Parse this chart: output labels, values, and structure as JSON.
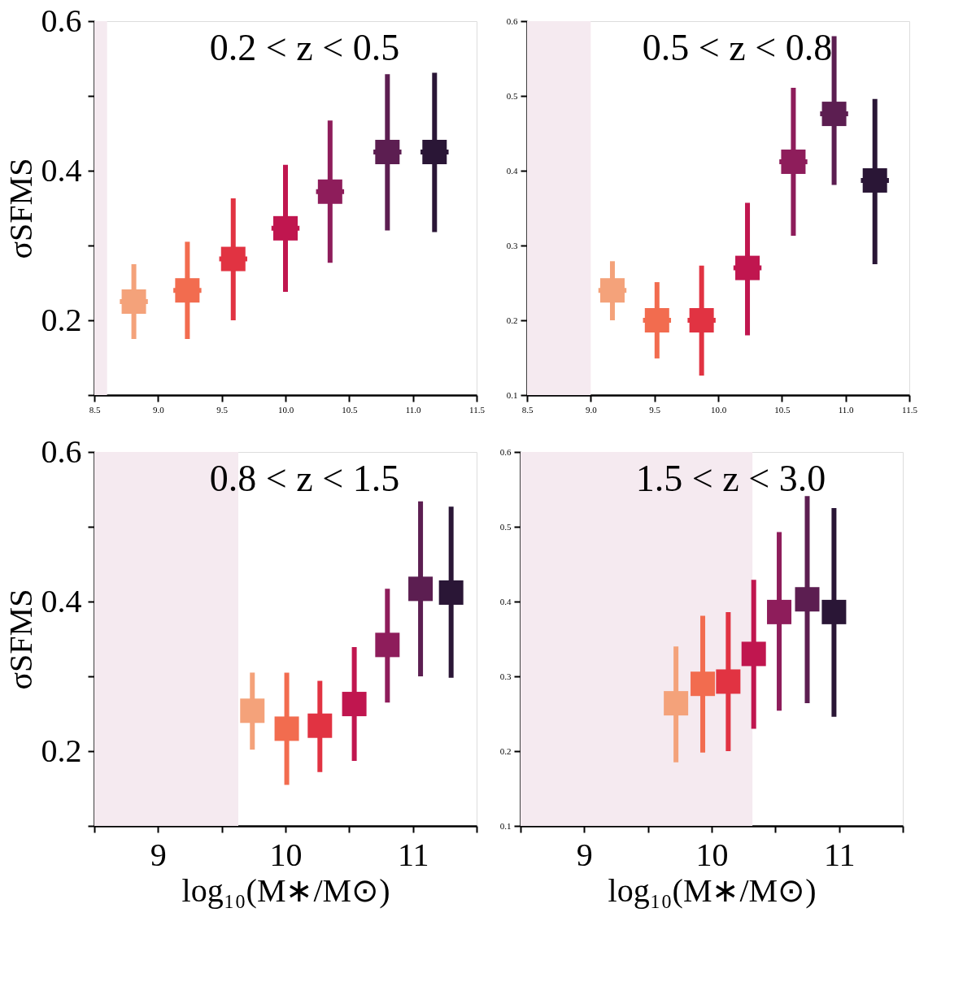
{
  "chart_data": [
    {
      "type": "scatter",
      "title": "0.2 < z < 0.5",
      "ylabel": "σSFMS",
      "marker": "square",
      "xlim": [
        8.5,
        11.5
      ],
      "ylim": [
        0.1,
        0.6
      ],
      "xticks": [
        8.5,
        {
          "value": 9,
          "label": "9.0"
        },
        9.5,
        {
          "value": 10,
          "label": "10.0"
        },
        10.5,
        {
          "value": 11,
          "label": "11.0"
        },
        11.5
      ],
      "yticks": [
        {
          "value": 0.1,
          "label": null
        },
        0.2,
        {
          "value": 0.3,
          "label": null
        },
        0.4,
        {
          "value": 0.5,
          "label": null
        },
        0.6
      ],
      "bands": [
        {
          "axis": "x",
          "from": 8.5,
          "to": 8.6,
          "color": "#f5eaf0"
        }
      ],
      "x": [
        8.81,
        9.23,
        9.59,
        10.0,
        10.35,
        10.8,
        11.17
      ],
      "series": [
        {
          "colors": [
            "#f4a27a",
            "#f26c4f",
            "#e13342",
            "#c0164f",
            "#8e1d5b",
            "#5c1e51",
            "#2a1636"
          ],
          "values": [
            0.225,
            0.24,
            0.282,
            0.323,
            0.372,
            0.425,
            0.425
          ],
          "errors": [
            [
              0.175,
              0.275
            ],
            [
              0.175,
              0.305
            ],
            [
              0.2,
              0.363
            ],
            [
              0.238,
              0.408
            ],
            [
              0.277,
              0.467
            ],
            [
              0.32,
              0.529
            ],
            [
              0.318,
              0.531
            ]
          ],
          "xerrors": [
            0.11,
            0.11,
            0.11,
            0.11,
            0.11,
            0.11,
            0.11
          ]
        }
      ]
    },
    {
      "type": "scatter",
      "title": "0.5 < z < 0.8",
      "marker": "square",
      "xlim": [
        8.5,
        11.5
      ],
      "ylim": [
        0.1,
        0.6
      ],
      "xticks": [
        8.5,
        {
          "value": 9,
          "label": "9.0"
        },
        9.5,
        {
          "value": 10,
          "label": "10.0"
        },
        10.5,
        {
          "value": 11,
          "label": "11.0"
        },
        11.5
      ],
      "yticks": [
        0.1,
        0.2,
        0.3,
        0.4,
        0.5,
        0.6
      ],
      "bands": [
        {
          "axis": "x",
          "from": 8.5,
          "to": 9.0,
          "color": "#f5eaf0"
        }
      ],
      "x": [
        9.17,
        9.52,
        9.87,
        10.23,
        10.59,
        10.91,
        11.23
      ],
      "series": [
        {
          "colors": [
            "#f4a27a",
            "#f26c4f",
            "#e13342",
            "#c0164f",
            "#8e1d5b",
            "#5c1e51",
            "#2a1636"
          ],
          "values": [
            0.24,
            0.2,
            0.2,
            0.27,
            0.412,
            0.476,
            0.387
          ],
          "errors": [
            [
              0.2,
              0.279
            ],
            [
              0.149,
              0.251
            ],
            [
              0.126,
              0.273
            ],
            [
              0.18,
              0.357
            ],
            [
              0.313,
              0.511
            ],
            [
              0.381,
              0.58
            ],
            [
              0.275,
              0.496
            ]
          ],
          "xerrors": [
            0.11,
            0.11,
            0.11,
            0.11,
            0.11,
            0.11,
            0.11
          ]
        }
      ]
    },
    {
      "type": "scatter",
      "title": "0.8 < z < 1.5",
      "xlabel": "log₁₀(M∗/M⊙)",
      "ylabel": "σSFMS",
      "marker": "square",
      "xlim": [
        8.5,
        11.5
      ],
      "ylim": [
        0.1,
        0.6
      ],
      "xticks": [
        {
          "value": 8.5,
          "label": null
        },
        9,
        {
          "value": 9.5,
          "label": null
        },
        10,
        {
          "value": 10.5,
          "label": null
        },
        11,
        {
          "value": 11.5,
          "label": null
        }
      ],
      "yticks": [
        {
          "value": 0.1,
          "label": null
        },
        0.2,
        {
          "value": 0.3,
          "label": null
        },
        0.4,
        {
          "value": 0.5,
          "label": null
        },
        0.6
      ],
      "bands": [
        {
          "axis": "x",
          "from": 8.5,
          "to": 9.63,
          "color": "#f5eaf0"
        }
      ],
      "x": [
        9.74,
        10.01,
        10.27,
        10.54,
        10.8,
        11.06,
        11.3
      ],
      "series": [
        {
          "colors": [
            "#f4a27a",
            "#f26c4f",
            "#e13342",
            "#c0164f",
            "#8e1d5b",
            "#5c1e51",
            "#2a1636"
          ],
          "values": [
            0.254,
            0.23,
            0.234,
            0.263,
            0.342,
            0.417,
            0.412
          ],
          "errors": [
            [
              0.202,
              0.305
            ],
            [
              0.155,
              0.305
            ],
            [
              0.172,
              0.294
            ],
            [
              0.187,
              0.339
            ],
            [
              0.265,
              0.417
            ],
            [
              0.3,
              0.534
            ],
            [
              0.298,
              0.527
            ]
          ]
        }
      ]
    },
    {
      "type": "scatter",
      "title": "1.5 < z < 3.0",
      "xlabel": "log₁₀(M∗/M⊙)",
      "marker": "square",
      "xlim": [
        8.5,
        11.5
      ],
      "ylim": [
        0.1,
        0.6
      ],
      "xticks": [
        {
          "value": 8.5,
          "label": null
        },
        9,
        {
          "value": 9.5,
          "label": null
        },
        10,
        {
          "value": 10.5,
          "label": null
        },
        11,
        {
          "value": 11.5,
          "label": null
        }
      ],
      "yticks": [
        0.1,
        0.2,
        0.3,
        0.4,
        0.5,
        0.6
      ],
      "bands": [
        {
          "axis": "x",
          "from": 8.5,
          "to": 10.32,
          "color": "#f5eaf0"
        }
      ],
      "x": [
        9.72,
        9.93,
        10.13,
        10.33,
        10.53,
        10.75,
        10.96
      ],
      "series": [
        {
          "colors": [
            "#f4a27a",
            "#f26c4f",
            "#e13342",
            "#c0164f",
            "#8e1d5b",
            "#5c1e51",
            "#2a1636"
          ],
          "values": [
            0.264,
            0.29,
            0.293,
            0.33,
            0.386,
            0.403,
            0.386
          ],
          "errors": [
            [
              0.185,
              0.34
            ],
            [
              0.198,
              0.381
            ],
            [
              0.2,
              0.386
            ],
            [
              0.23,
              0.429
            ],
            [
              0.254,
              0.493
            ],
            [
              0.264,
              0.541
            ],
            [
              0.246,
              0.525
            ]
          ]
        }
      ]
    }
  ]
}
